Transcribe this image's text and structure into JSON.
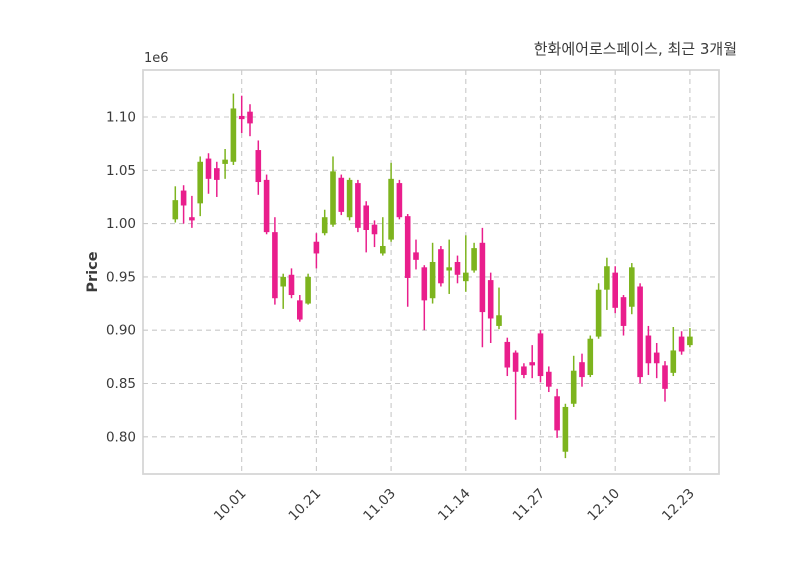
{
  "header": {
    "title": "한화에어로스페이스, 최근 3개월"
  },
  "chart_data": {
    "type": "candlestick",
    "title": "한화에어로스페이스, 최근 3개월",
    "xlabel": "",
    "ylabel": "Price",
    "y_offset_label": "1e6",
    "y_unit_multiplier": 1000000,
    "grid": true,
    "legend": false,
    "ylim": [
      0.7651,
      1.1441
    ],
    "y_ticks": [
      0.8,
      0.85,
      0.9,
      0.95,
      1.0,
      1.05,
      1.1
    ],
    "y_tick_labels": [
      "0.80",
      "0.85",
      "0.90",
      "0.95",
      "1.00",
      "1.05",
      "1.10"
    ],
    "x_ticks": [
      {
        "index": 8,
        "label": "10.01"
      },
      {
        "index": 17,
        "label": "10.21"
      },
      {
        "index": 26,
        "label": "11.03"
      },
      {
        "index": 35,
        "label": "11.14"
      },
      {
        "index": 44,
        "label": "11.27"
      },
      {
        "index": 53,
        "label": "12.10"
      },
      {
        "index": 62,
        "label": "12.23"
      }
    ],
    "colors": {
      "up": "#7db41e",
      "down": "#e91e8c",
      "grid": "#c9c9c9",
      "frame": "#d6d6d6",
      "text": "#3a3a3a",
      "background": "#ffffff"
    },
    "candles": [
      {
        "o": 1.004,
        "h": 1.035,
        "l": 1.001,
        "c": 1.022
      },
      {
        "o": 1.031,
        "h": 1.036,
        "l": 1.0,
        "c": 1.017
      },
      {
        "o": 1.006,
        "h": 1.026,
        "l": 0.996,
        "c": 1.003
      },
      {
        "o": 1.019,
        "h": 1.063,
        "l": 1.007,
        "c": 1.058
      },
      {
        "o": 1.061,
        "h": 1.066,
        "l": 1.028,
        "c": 1.042
      },
      {
        "o": 1.052,
        "h": 1.058,
        "l": 1.025,
        "c": 1.041
      },
      {
        "o": 1.056,
        "h": 1.07,
        "l": 1.042,
        "c": 1.06
      },
      {
        "o": 1.058,
        "h": 1.122,
        "l": 1.055,
        "c": 1.108
      },
      {
        "o": 1.101,
        "h": 1.12,
        "l": 1.085,
        "c": 1.098
      },
      {
        "o": 1.105,
        "h": 1.112,
        "l": 1.082,
        "c": 1.094
      },
      {
        "o": 1.069,
        "h": 1.078,
        "l": 1.027,
        "c": 1.039
      },
      {
        "o": 1.041,
        "h": 1.046,
        "l": 0.99,
        "c": 0.992
      },
      {
        "o": 0.992,
        "h": 1.006,
        "l": 0.924,
        "c": 0.93
      },
      {
        "o": 0.941,
        "h": 0.953,
        "l": 0.92,
        "c": 0.95
      },
      {
        "o": 0.952,
        "h": 0.958,
        "l": 0.93,
        "c": 0.933
      },
      {
        "o": 0.928,
        "h": 0.933,
        "l": 0.908,
        "c": 0.91
      },
      {
        "o": 0.925,
        "h": 0.953,
        "l": 0.924,
        "c": 0.95
      },
      {
        "o": 0.983,
        "h": 0.991,
        "l": 0.958,
        "c": 0.972
      },
      {
        "o": 0.991,
        "h": 1.013,
        "l": 0.989,
        "c": 1.006
      },
      {
        "o": 0.999,
        "h": 1.063,
        "l": 0.997,
        "c": 1.049
      },
      {
        "o": 1.043,
        "h": 1.046,
        "l": 1.008,
        "c": 1.011
      },
      {
        "o": 1.006,
        "h": 1.043,
        "l": 1.003,
        "c": 1.041
      },
      {
        "o": 1.038,
        "h": 1.041,
        "l": 0.992,
        "c": 0.996
      },
      {
        "o": 1.017,
        "h": 1.021,
        "l": 0.973,
        "c": 0.994
      },
      {
        "o": 0.999,
        "h": 1.003,
        "l": 0.978,
        "c": 0.99
      },
      {
        "o": 0.972,
        "h": 1.006,
        "l": 0.97,
        "c": 0.979
      },
      {
        "o": 0.985,
        "h": 1.057,
        "l": 0.983,
        "c": 1.042
      },
      {
        "o": 1.038,
        "h": 1.041,
        "l": 1.004,
        "c": 1.006
      },
      {
        "o": 1.007,
        "h": 1.009,
        "l": 0.922,
        "c": 0.949
      },
      {
        "o": 0.973,
        "h": 0.985,
        "l": 0.957,
        "c": 0.966
      },
      {
        "o": 0.959,
        "h": 0.961,
        "l": 0.9,
        "c": 0.928
      },
      {
        "o": 0.93,
        "h": 0.982,
        "l": 0.925,
        "c": 0.964
      },
      {
        "o": 0.976,
        "h": 0.979,
        "l": 0.941,
        "c": 0.944
      },
      {
        "o": 0.956,
        "h": 0.985,
        "l": 0.934,
        "c": 0.959
      },
      {
        "o": 0.964,
        "h": 0.97,
        "l": 0.944,
        "c": 0.952
      },
      {
        "o": 0.946,
        "h": 0.989,
        "l": 0.936,
        "c": 0.954
      },
      {
        "o": 0.956,
        "h": 0.982,
        "l": 0.954,
        "c": 0.977
      },
      {
        "o": 0.982,
        "h": 0.996,
        "l": 0.884,
        "c": 0.917
      },
      {
        "o": 0.947,
        "h": 0.954,
        "l": 0.888,
        "c": 0.911
      },
      {
        "o": 0.904,
        "h": 0.94,
        "l": 0.901,
        "c": 0.914
      },
      {
        "o": 0.889,
        "h": 0.893,
        "l": 0.857,
        "c": 0.865
      },
      {
        "o": 0.879,
        "h": 0.881,
        "l": 0.816,
        "c": 0.861
      },
      {
        "o": 0.866,
        "h": 0.869,
        "l": 0.855,
        "c": 0.858
      },
      {
        "o": 0.87,
        "h": 0.886,
        "l": 0.855,
        "c": 0.867
      },
      {
        "o": 0.897,
        "h": 0.9,
        "l": 0.851,
        "c": 0.857
      },
      {
        "o": 0.861,
        "h": 0.866,
        "l": 0.842,
        "c": 0.847
      },
      {
        "o": 0.838,
        "h": 0.845,
        "l": 0.799,
        "c": 0.806
      },
      {
        "o": 0.786,
        "h": 0.831,
        "l": 0.78,
        "c": 0.828
      },
      {
        "o": 0.831,
        "h": 0.876,
        "l": 0.828,
        "c": 0.862
      },
      {
        "o": 0.87,
        "h": 0.878,
        "l": 0.847,
        "c": 0.856
      },
      {
        "o": 0.858,
        "h": 0.895,
        "l": 0.856,
        "c": 0.892
      },
      {
        "o": 0.894,
        "h": 0.944,
        "l": 0.892,
        "c": 0.938
      },
      {
        "o": 0.938,
        "h": 0.968,
        "l": 0.919,
        "c": 0.96
      },
      {
        "o": 0.954,
        "h": 0.96,
        "l": 0.916,
        "c": 0.921
      },
      {
        "o": 0.931,
        "h": 0.933,
        "l": 0.895,
        "c": 0.904
      },
      {
        "o": 0.922,
        "h": 0.963,
        "l": 0.915,
        "c": 0.959
      },
      {
        "o": 0.941,
        "h": 0.944,
        "l": 0.85,
        "c": 0.856
      },
      {
        "o": 0.895,
        "h": 0.904,
        "l": 0.858,
        "c": 0.869
      },
      {
        "o": 0.879,
        "h": 0.888,
        "l": 0.855,
        "c": 0.869
      },
      {
        "o": 0.867,
        "h": 0.871,
        "l": 0.833,
        "c": 0.845
      },
      {
        "o": 0.86,
        "h": 0.903,
        "l": 0.857,
        "c": 0.881
      },
      {
        "o": 0.894,
        "h": 0.899,
        "l": 0.877,
        "c": 0.88
      },
      {
        "o": 0.886,
        "h": 0.902,
        "l": 0.884,
        "c": 0.894
      }
    ]
  }
}
